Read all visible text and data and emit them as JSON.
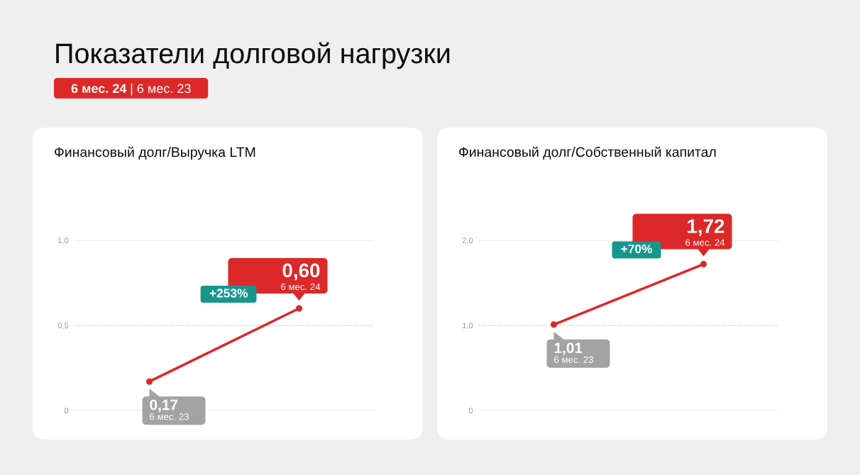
{
  "chart_data": [
    {
      "type": "other",
      "title": "Показатели долговой нагрузки",
      "annotations": [
        "6 мес. 24",
        "| 6 мес. 23"
      ]
    },
    {
      "type": "line",
      "title": "Финансовый долг/Выручка LTM",
      "categories": [
        null,
        null
      ],
      "series": [
        {
          "color": "#dc2828",
          "values": [
            0.17,
            0.6
          ],
          "value_labels": [
            "0,17",
            "0,60"
          ]
        }
      ],
      "ylim": [
        0,
        1.0
      ],
      "yticks": [
        0,
        {
          "value": 0.5,
          "label": "0,5"
        },
        {
          "value": 1.0,
          "label": "1,0"
        }
      ],
      "grid": "y",
      "marker": "circle",
      "line_style": "solid",
      "tick_labels": "y",
      "annotations": [
        "6 мес. 23",
        "6 мес. 24",
        "+253%"
      ]
    },
    {
      "type": "line",
      "title": "Финансовый долг/Собственный капитал",
      "categories": [
        null,
        null
      ],
      "series": [
        {
          "color": "#dc2828",
          "values": [
            1.01,
            1.72
          ],
          "value_labels": [
            "1,01",
            "1,72"
          ]
        }
      ],
      "ylim": [
        0,
        2.0
      ],
      "yticks": [
        0,
        {
          "value": 1.0,
          "label": "1,0"
        },
        {
          "value": 2.0,
          "label": "2,0"
        }
      ],
      "grid": "y",
      "marker": "circle",
      "line_style": "solid",
      "tick_labels": "y",
      "annotations": [
        "6 мес. 23",
        "6 мес. 24",
        "+70%"
      ]
    }
  ]
}
